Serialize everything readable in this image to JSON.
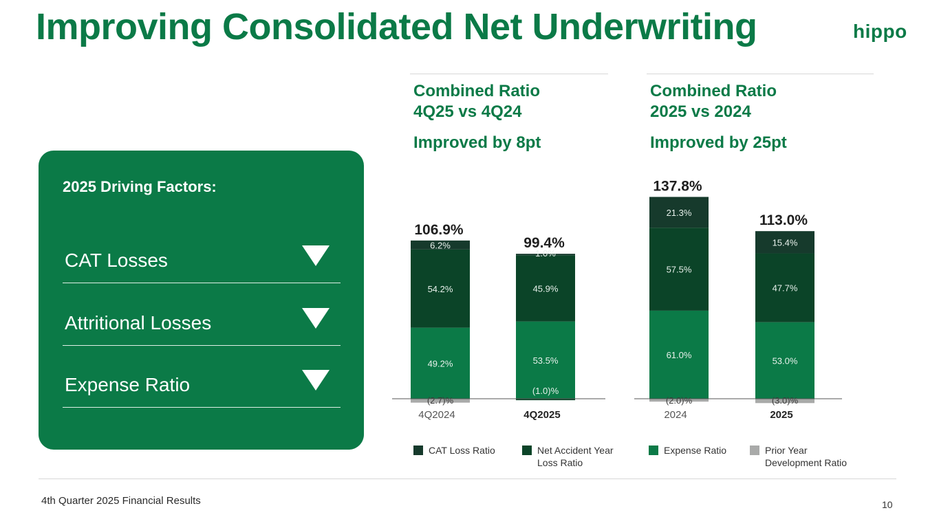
{
  "title": "Improving Consolidated Net Underwriting",
  "logo": "hippo",
  "colors": {
    "brand_green": "#0b7a47",
    "cat": "#163a2c",
    "net_accident": "#0b4428",
    "expense": "#0b7a47",
    "prior_year": "#a9aaa9"
  },
  "left_header": {
    "line1": "Combined Ratio",
    "line2": "4Q25 vs 4Q24",
    "sub": "Improved by 8pt"
  },
  "right_header": {
    "line1": "Combined Ratio",
    "line2": "2025 vs 2024",
    "sub": "Improved by 25pt"
  },
  "panel": {
    "title": "2025 Driving Factors:",
    "factors": [
      {
        "label": "CAT Losses",
        "icon": "triangle-down-icon"
      },
      {
        "label": "Attritional Losses",
        "icon": "triangle-down-icon"
      },
      {
        "label": "Expense Ratio",
        "icon": "triangle-down-icon"
      }
    ]
  },
  "chart_data": {
    "type": "bar",
    "stacked": true,
    "categories": [
      "4Q2024",
      "4Q2025",
      "2024",
      "2025"
    ],
    "category_bold": [
      false,
      true,
      false,
      true
    ],
    "series": [
      {
        "name": "Prior Year Development Ratio",
        "values": [
          -2.7,
          -1.0,
          -2.0,
          -3.0
        ],
        "labels": [
          "(2.7)%",
          "(1.0)%",
          "(2.0)%",
          "(3.0)%"
        ]
      },
      {
        "name": "Expense Ratio",
        "values": [
          49.2,
          53.5,
          61.0,
          53.0
        ],
        "labels": [
          "49.2%",
          "53.5%",
          "61.0%",
          "53.0%"
        ]
      },
      {
        "name": "Net Accident Year Loss Ratio",
        "values": [
          54.2,
          45.9,
          57.5,
          47.7
        ],
        "labels": [
          "54.2%",
          "45.9%",
          "57.5%",
          "47.7%"
        ]
      },
      {
        "name": "CAT Loss Ratio",
        "values": [
          6.2,
          1.0,
          21.3,
          15.4
        ],
        "labels": [
          "6.2%",
          "1.0%",
          "21.3%",
          "15.4%"
        ]
      }
    ],
    "totals": [
      "106.9%",
      "99.4%",
      "137.8%",
      "113.0%"
    ],
    "legend": [
      {
        "name": "CAT Loss Ratio",
        "line1": "CAT Loss Ratio",
        "line2": ""
      },
      {
        "name": "Net Accident Year Loss Ratio",
        "line1": "Net Accident Year",
        "line2": "Loss Ratio"
      },
      {
        "name": "Expense Ratio",
        "line1": "Expense Ratio",
        "line2": ""
      },
      {
        "name": "Prior Year Development Ratio",
        "line1": "Prior Year",
        "line2": "Development Ratio"
      }
    ]
  },
  "footer": "4th Quarter 2025 Financial Results",
  "page_number": "10"
}
